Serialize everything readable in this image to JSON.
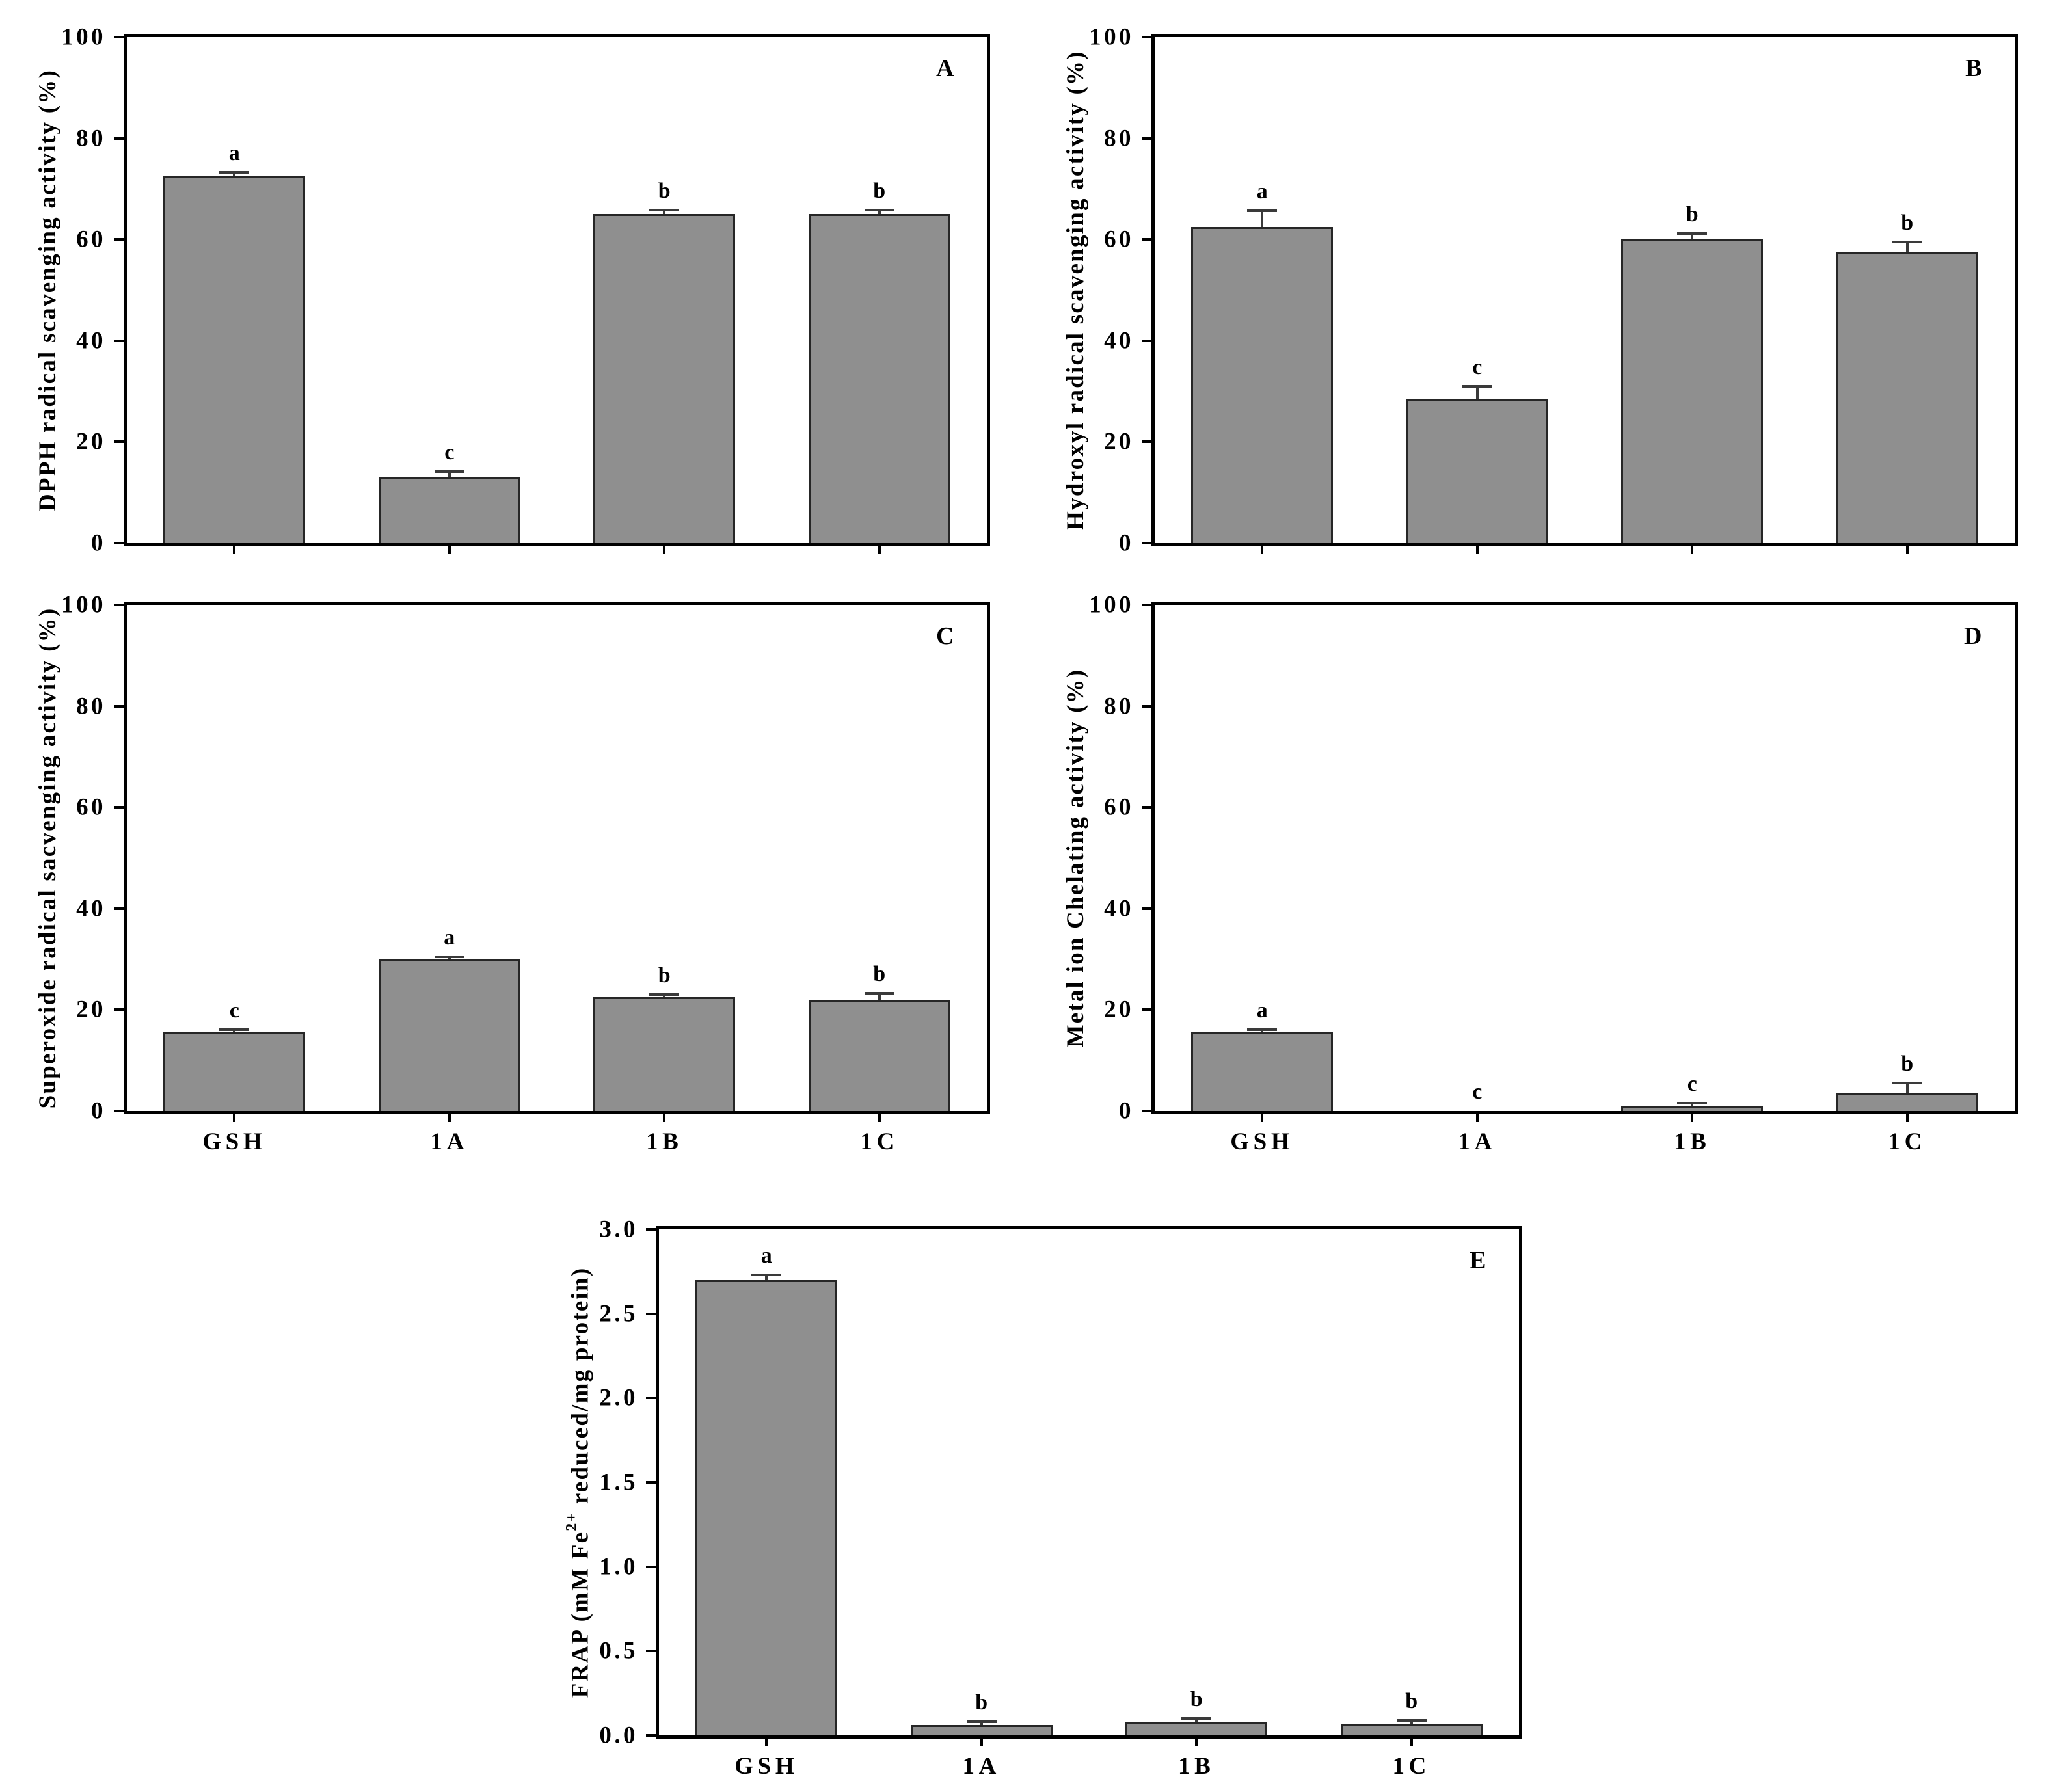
{
  "figure": {
    "background": "#ffffff",
    "bar_fill": "#8f8f8f",
    "bar_border": "#262626",
    "axis_color": "#000000",
    "error_bar_color": "#3a3a3a",
    "text_color": "#000000"
  },
  "chart_data": [
    {
      "type": "bar",
      "panel_letter": "A",
      "title": "",
      "ylabel": "DPPH radical scavenging activity (%)",
      "xlabel": "",
      "categories": [
        "GSH",
        "1A",
        "1B",
        "1C"
      ],
      "show_x_labels": false,
      "ylim": [
        0,
        100
      ],
      "yticks": [
        0,
        20,
        40,
        60,
        80,
        100
      ],
      "ytick_labels": [
        "0",
        "20",
        "40",
        "60",
        "80",
        "100"
      ],
      "values": [
        72.5,
        13,
        65,
        65
      ],
      "errors": [
        0.8,
        1.2,
        0.8,
        0.8
      ],
      "sig_letters": [
        "a",
        "c",
        "b",
        "b"
      ],
      "grid": false,
      "legend": "none"
    },
    {
      "type": "bar",
      "panel_letter": "B",
      "title": "",
      "ylabel": "Hydroxyl radical scavenging activity (%)",
      "xlabel": "",
      "categories": [
        "GSH",
        "1A",
        "1B",
        "1C"
      ],
      "show_x_labels": false,
      "ylim": [
        0,
        100
      ],
      "yticks": [
        0,
        20,
        40,
        60,
        80,
        100
      ],
      "ytick_labels": [
        "0",
        "20",
        "40",
        "60",
        "80",
        "100"
      ],
      "values": [
        62.5,
        28.5,
        60,
        57.5
      ],
      "errors": [
        3.2,
        2.5,
        1.2,
        2
      ],
      "sig_letters": [
        "a",
        "c",
        "b",
        "b"
      ],
      "grid": false,
      "legend": "none"
    },
    {
      "type": "bar",
      "panel_letter": "C",
      "title": "",
      "ylabel": "Superoxide radical sacvenging activity (%)",
      "xlabel": "",
      "categories": [
        "GSH",
        "1A",
        "1B",
        "1C"
      ],
      "show_x_labels": true,
      "ylim": [
        0,
        100
      ],
      "yticks": [
        0,
        20,
        40,
        60,
        80,
        100
      ],
      "ytick_labels": [
        "0",
        "20",
        "40",
        "60",
        "80",
        "100"
      ],
      "values": [
        15.5,
        30,
        22.5,
        22
      ],
      "errors": [
        0.6,
        0.5,
        0.5,
        1.3
      ],
      "sig_letters": [
        "c",
        "a",
        "b",
        "b"
      ],
      "grid": false,
      "legend": "none"
    },
    {
      "type": "bar",
      "panel_letter": "D",
      "title": "",
      "ylabel": "Metal ion Chelating activity (%)",
      "xlabel": "",
      "categories": [
        "GSH",
        "1A",
        "1B",
        "1C"
      ],
      "show_x_labels": true,
      "ylim": [
        0,
        100
      ],
      "yticks": [
        0,
        20,
        40,
        60,
        80,
        100
      ],
      "ytick_labels": [
        "0",
        "20",
        "40",
        "60",
        "80",
        "100"
      ],
      "values": [
        15.5,
        0,
        1,
        3.5
      ],
      "errors": [
        0.6,
        0,
        0.5,
        2
      ],
      "sig_letters": [
        "a",
        "c",
        "c",
        "b"
      ],
      "grid": false,
      "legend": "none"
    },
    {
      "type": "bar",
      "panel_letter": "E",
      "title": "",
      "ylabel": "FRAP (mM Fe2+ reduced/mg protein)",
      "ylabel_segments": [
        {
          "text": "FRAP (mM Fe"
        },
        {
          "text": "2+",
          "sup": true
        },
        {
          "text": " reduced/mg protein)"
        }
      ],
      "xlabel": "",
      "categories": [
        "GSH",
        "1A",
        "1B",
        "1C"
      ],
      "show_x_labels": true,
      "ylim": [
        0,
        3.0
      ],
      "yticks": [
        0,
        0.5,
        1.0,
        1.5,
        2.0,
        2.5,
        3.0
      ],
      "ytick_labels": [
        "0.0",
        "0.5",
        "1.0",
        "1.5",
        "2.0",
        "2.5",
        "3.0"
      ],
      "values": [
        2.7,
        0.06,
        0.08,
        0.07
      ],
      "errors": [
        0.03,
        0.02,
        0.02,
        0.02
      ],
      "sig_letters": [
        "a",
        "b",
        "b",
        "b"
      ],
      "grid": false,
      "legend": "none"
    }
  ]
}
